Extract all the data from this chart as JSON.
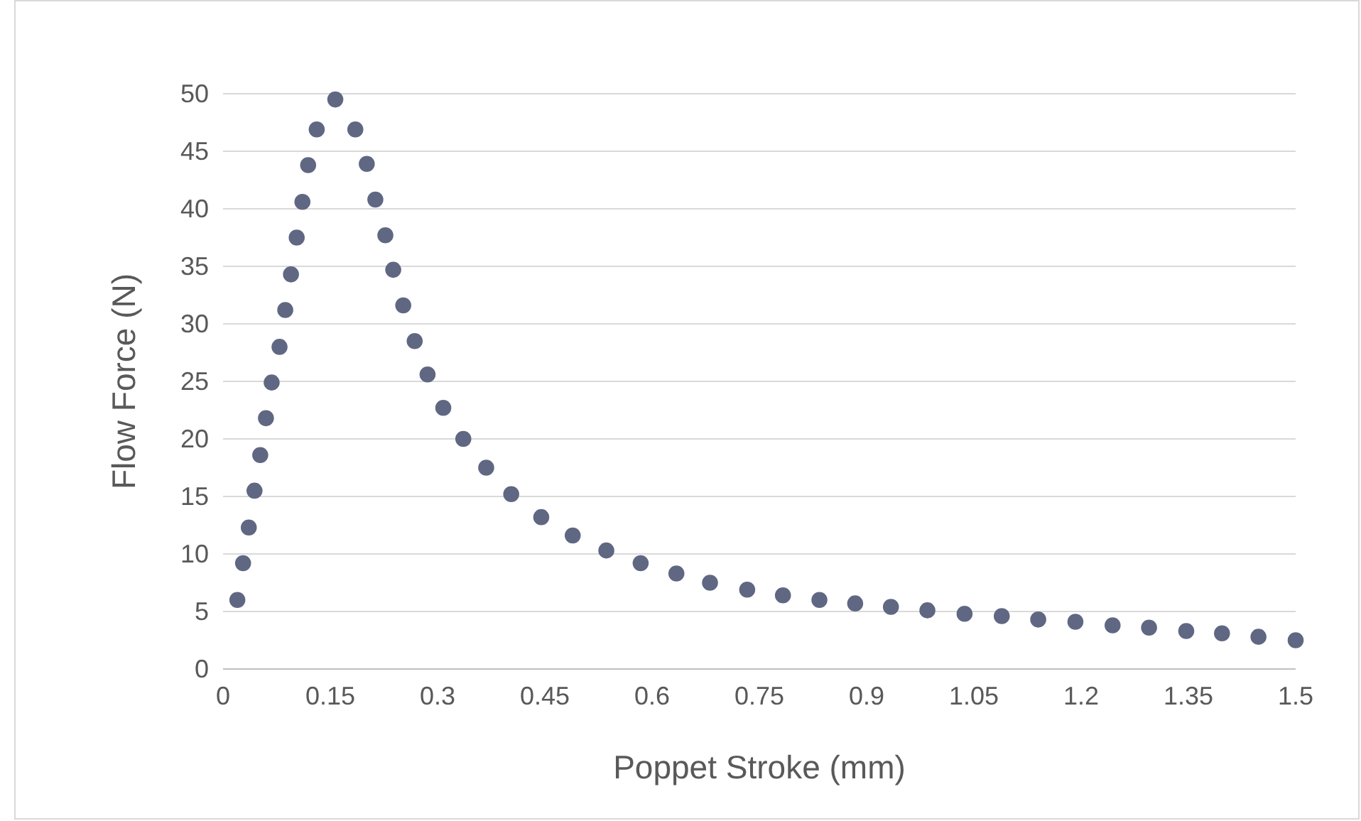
{
  "chart_data": {
    "type": "scatter",
    "xlabel": "Poppet Stroke (mm)",
    "ylabel": "Flow Force (N)",
    "xlim": [
      0,
      1.5
    ],
    "xticks": [
      0,
      0.15,
      0.3,
      0.45,
      0.6,
      0.75,
      0.9,
      1.05,
      1.2,
      1.35,
      1.5
    ],
    "ylim": [
      0,
      50
    ],
    "yticks": [
      0,
      5,
      10,
      15,
      20,
      25,
      30,
      35,
      40,
      45,
      50
    ],
    "grid": "y",
    "marker": "circle",
    "series": [
      {
        "color": "#5f6783",
        "x": [
          0.02,
          0.028,
          0.036,
          0.044,
          0.052,
          0.06,
          0.068,
          0.079,
          0.087,
          0.095,
          0.103,
          0.111,
          0.119,
          0.131,
          0.157,
          0.185,
          0.201,
          0.213,
          0.227,
          0.238,
          0.252,
          0.268,
          0.286,
          0.308,
          0.336,
          0.368,
          0.403,
          0.445,
          0.489,
          0.536,
          0.584,
          0.634,
          0.681,
          0.733,
          0.783,
          0.834,
          0.884,
          0.934,
          0.985,
          1.037,
          1.089,
          1.14,
          1.192,
          1.244,
          1.295,
          1.347,
          1.397,
          1.448,
          1.5
        ],
        "values": [
          6.0,
          9.2,
          12.3,
          15.5,
          18.6,
          21.8,
          24.9,
          28.0,
          31.2,
          34.3,
          37.5,
          40.6,
          43.8,
          46.9,
          49.5,
          46.9,
          43.9,
          40.8,
          37.7,
          34.7,
          31.6,
          28.5,
          25.6,
          22.7,
          20.0,
          17.5,
          15.2,
          13.2,
          11.6,
          10.3,
          9.2,
          8.3,
          7.5,
          6.9,
          6.4,
          6.0,
          5.7,
          5.4,
          5.1,
          4.8,
          4.6,
          4.3,
          4.1,
          3.8,
          3.6,
          3.3,
          3.1,
          2.8,
          2.5
        ]
      }
    ]
  }
}
